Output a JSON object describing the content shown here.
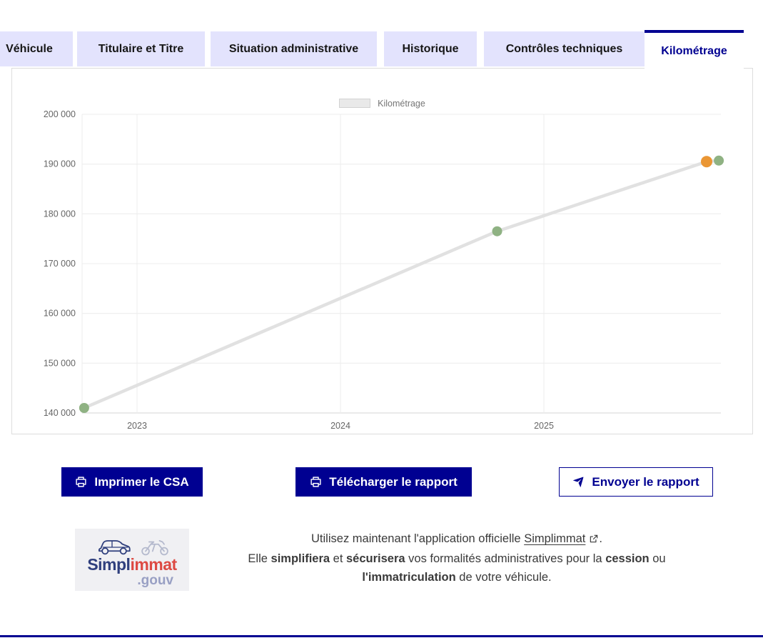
{
  "tabs": {
    "items": [
      {
        "label": "Véhicule",
        "active": false
      },
      {
        "label": "Titulaire et Titre",
        "active": false
      },
      {
        "label": "Situation administrative",
        "active": false
      },
      {
        "label": "Historique",
        "active": false
      },
      {
        "label": "Contrôles techniques",
        "active": false
      },
      {
        "label": "Kilométrage",
        "active": true
      }
    ]
  },
  "chart_data": {
    "type": "line",
    "title": "",
    "legend_label": "Kilométrage",
    "legend_position": "top",
    "series_name": "Kilométrage",
    "x_range": [
      2022.73,
      2025.87
    ],
    "y_range": [
      140000,
      200000
    ],
    "y_ticks": [
      {
        "value": 140000,
        "label": "140 000"
      },
      {
        "value": 150000,
        "label": "150 000"
      },
      {
        "value": 160000,
        "label": "160 000"
      },
      {
        "value": 170000,
        "label": "170 000"
      },
      {
        "value": 180000,
        "label": "180 000"
      },
      {
        "value": 190000,
        "label": "190 000"
      },
      {
        "value": 200000,
        "label": "200 000"
      }
    ],
    "x_ticks": [
      {
        "value": 2023,
        "label": "2023"
      },
      {
        "value": 2024,
        "label": "2024"
      },
      {
        "value": 2025,
        "label": "2025"
      }
    ],
    "line_color": "#e1e1e1",
    "grid_color": "#ececec",
    "axis_color": "#d6d6d6",
    "points": [
      {
        "x": 2022.74,
        "km": 141000,
        "color": "#8fb283",
        "r": 7
      },
      {
        "x": 2024.77,
        "km": 176500,
        "color": "#8fb283",
        "r": 7
      },
      {
        "x": 2025.8,
        "km": 190500,
        "color": "#ea9634",
        "r": 8
      },
      {
        "x": 2025.86,
        "km": 190700,
        "color": "#8fb283",
        "r": 7
      }
    ]
  },
  "actions": {
    "print_csa": "Imprimer le CSA",
    "download_report": "Télécharger le rapport",
    "send_report": "Envoyer le rapport"
  },
  "promo": {
    "brand_part1": "Simpl",
    "brand_part2": "immat",
    "brand_suffix": ".gouv",
    "line1_prefix": "Utilisez maintenant l'application officielle ",
    "line1_link": "Simplimmat",
    "line1_suffix": ".",
    "line2": {
      "s1": "Elle ",
      "b1": "simplifiera",
      "s2": " et ",
      "b2": "sécurisera",
      "s3": " vos formalités administratives pour la ",
      "b3": "cession",
      "s4": " ou ",
      "b4": "l'immatriculation",
      "s5": " de votre véhicule."
    }
  },
  "colors": {
    "accent_blue": "#000091",
    "tab_inactive_bg": "#e3e3fd",
    "point_green": "#8fb283",
    "point_orange": "#ea9634",
    "brand_red": "#dd4a43"
  }
}
